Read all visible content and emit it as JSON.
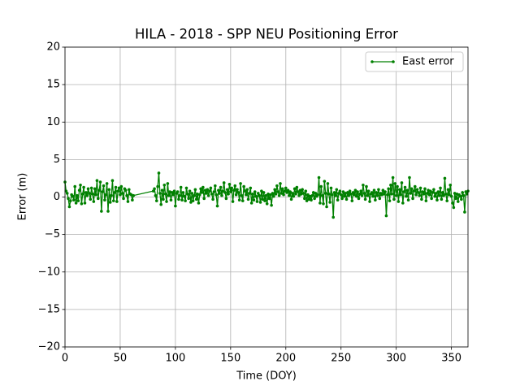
{
  "chart_data": {
    "type": "line",
    "title": "HILA - 2018 - SPP NEU Positioning Error",
    "xlabel": "Time (DOY)",
    "ylabel": "Error (m)",
    "xlim": [
      0,
      365
    ],
    "ylim": [
      -20,
      20
    ],
    "xticks": [
      0,
      50,
      100,
      150,
      200,
      250,
      300,
      350
    ],
    "yticks": [
      {
        "value": -20,
        "label": "−20"
      },
      {
        "value": -15,
        "label": "−15"
      },
      {
        "value": -10,
        "label": "−10"
      },
      {
        "value": -5,
        "label": "−5"
      },
      0,
      5,
      10,
      15,
      20
    ],
    "grid": true,
    "legend": "upper right",
    "x": [
      0,
      1,
      2,
      3,
      4,
      5,
      6,
      7,
      8,
      9,
      10,
      11,
      12,
      13,
      14,
      15,
      16,
      17,
      18,
      19,
      20,
      21,
      22,
      23,
      24,
      25,
      26,
      27,
      28,
      29,
      30,
      31,
      32,
      33,
      34,
      35,
      36,
      37,
      38,
      39,
      40,
      41,
      42,
      43,
      44,
      45,
      46,
      47,
      48,
      49,
      50,
      51,
      52,
      53,
      54,
      55,
      56,
      57,
      58,
      59,
      60,
      61,
      62,
      80,
      81,
      82,
      83,
      84,
      85,
      86,
      87,
      88,
      89,
      90,
      91,
      92,
      93,
      94,
      95,
      96,
      97,
      98,
      99,
      100,
      101,
      102,
      103,
      104,
      105,
      106,
      107,
      108,
      109,
      110,
      111,
      112,
      113,
      114,
      115,
      116,
      117,
      118,
      119,
      120,
      121,
      122,
      123,
      124,
      125,
      126,
      127,
      128,
      129,
      130,
      131,
      132,
      133,
      134,
      135,
      136,
      137,
      138,
      139,
      140,
      141,
      142,
      143,
      144,
      145,
      146,
      147,
      148,
      149,
      150,
      151,
      152,
      153,
      154,
      155,
      156,
      157,
      158,
      159,
      160,
      161,
      162,
      163,
      164,
      165,
      166,
      167,
      168,
      169,
      170,
      171,
      172,
      173,
      174,
      175,
      176,
      177,
      178,
      179,
      180,
      181,
      182,
      183,
      184,
      185,
      186,
      187,
      188,
      189,
      190,
      191,
      192,
      193,
      194,
      195,
      196,
      197,
      198,
      199,
      200,
      201,
      202,
      203,
      204,
      205,
      206,
      207,
      208,
      209,
      210,
      211,
      212,
      213,
      214,
      215,
      216,
      217,
      218,
      219,
      220,
      221,
      222,
      223,
      224,
      225,
      226,
      227,
      228,
      229,
      230,
      231,
      232,
      233,
      234,
      235,
      236,
      237,
      238,
      239,
      240,
      241,
      242,
      243,
      244,
      245,
      246,
      247,
      248,
      249,
      250,
      251,
      252,
      253,
      254,
      255,
      256,
      257,
      258,
      259,
      260,
      261,
      262,
      263,
      264,
      265,
      266,
      267,
      268,
      269,
      270,
      271,
      272,
      273,
      274,
      275,
      276,
      277,
      278,
      279,
      280,
      281,
      282,
      283,
      284,
      285,
      286,
      287,
      288,
      289,
      290,
      291,
      292,
      293,
      294,
      295,
      296,
      297,
      298,
      299,
      300,
      301,
      302,
      303,
      304,
      305,
      306,
      307,
      308,
      309,
      310,
      311,
      312,
      313,
      314,
      315,
      316,
      317,
      318,
      319,
      320,
      321,
      322,
      323,
      324,
      325,
      326,
      327,
      328,
      329,
      330,
      331,
      332,
      333,
      334,
      335,
      336,
      337,
      338,
      339,
      340,
      341,
      342,
      343,
      344,
      345,
      346,
      347,
      348,
      349,
      350,
      351,
      352,
      353,
      354,
      355,
      356,
      357,
      358,
      359,
      360,
      361,
      362,
      363,
      364,
      365
    ],
    "series": [
      {
        "name": "East error",
        "color": "#008000",
        "values": [
          2.0,
          0.8,
          0.5,
          -0.2,
          -1.3,
          -0.5,
          0.3,
          0.1,
          -0.4,
          1.4,
          -0.8,
          0.2,
          -0.5,
          0.9,
          1.6,
          -0.9,
          0.4,
          1.3,
          -0.8,
          0.6,
          0.2,
          1.1,
          0.5,
          -0.3,
          1.2,
          0.4,
          -0.6,
          1.1,
          0.3,
          2.2,
          -0.2,
          0.9,
          2.0,
          -1.9,
          0.7,
          1.5,
          -0.4,
          0.3,
          1.8,
          -1.9,
          1.0,
          -0.7,
          0.2,
          2.2,
          -0.5,
          0.6,
          1.3,
          -0.6,
          0.8,
          1.2,
          0.3,
          1.4,
          0.5,
          -0.2,
          1.1,
          0.9,
          0.2,
          -0.6,
          1.0,
          0.4,
          0.3,
          -0.4,
          0.2,
          0.8,
          1.1,
          0.2,
          -0.5,
          1.4,
          3.2,
          0.5,
          -1.0,
          0.9,
          -0.3,
          1.6,
          0.4,
          -0.6,
          1.8,
          0.2,
          0.7,
          -0.4,
          0.6,
          0.3,
          0.8,
          -1.2,
          0.5,
          0.7,
          -0.3,
          0.2,
          1.3,
          -0.4,
          0.6,
          0.1,
          -0.5,
          1.2,
          0.4,
          -0.2,
          0.8,
          -0.7,
          0.5,
          -0.5,
          0.2,
          1.0,
          -0.3,
          0.4,
          -0.8,
          0.3,
          1.1,
          0.6,
          1.3,
          -0.2,
          0.9,
          0.5,
          1.0,
          0.2,
          0.8,
          1.2,
          0.4,
          -0.3,
          0.7,
          1.5,
          0.3,
          -1.2,
          0.9,
          0.5,
          1.3,
          0.2,
          0.8,
          1.9,
          0.6,
          -0.2,
          1.0,
          0.4,
          1.7,
          0.7,
          1.2,
          -0.6,
          0.9,
          1.5,
          0.3,
          1.0,
          0.6,
          -0.4,
          1.8,
          0.2,
          -0.5,
          1.4,
          0.8,
          0.3,
          1.0,
          -0.3,
          0.5,
          1.2,
          -0.8,
          0.4,
          -0.4,
          0.7,
          0.1,
          -0.6,
          0.5,
          0.2,
          -0.7,
          0.8,
          -0.3,
          0.6,
          -0.5,
          0.2,
          -0.9,
          0.4,
          -0.2,
          0.3,
          -1.1,
          0.5,
          0.1,
          1.0,
          0.4,
          1.5,
          0.7,
          0.2,
          1.8,
          0.5,
          1.1,
          0.3,
          0.8,
          1.2,
          0.6,
          0.9,
          0.2,
          0.7,
          -0.3,
          0.5,
          0.1,
          1.1,
          0.4,
          1.3,
          0.7,
          0.2,
          0.9,
          0.4,
          1.0,
          0.5,
          -0.2,
          0.8,
          -0.5,
          0.3,
          -0.3,
          0.1,
          -0.4,
          0.2,
          0.6,
          -0.2,
          0.5,
          0.1,
          0.3,
          2.6,
          -0.8,
          1.4,
          0.2,
          -0.9,
          2.1,
          0.5,
          -1.3,
          1.8,
          0.4,
          -0.7,
          1.2,
          0.3,
          -2.7,
          0.6,
          0.2,
          1.0,
          -0.4,
          0.5,
          0.8,
          0.3,
          -0.2,
          0.7,
          0.1,
          0.5,
          -0.3,
          0.6,
          0.2,
          0.8,
          0.4,
          -0.5,
          0.6,
          0.3,
          0.9,
          0.1,
          0.7,
          -0.2,
          0.4,
          0.8,
          0.2,
          1.6,
          0.5,
          -0.3,
          1.4,
          0.2,
          0.8,
          -0.6,
          0.4,
          0.6,
          0.1,
          0.9,
          -0.4,
          0.6,
          0.2,
          1.0,
          -0.2,
          0.5,
          0.3,
          0.9,
          0.4,
          0.7,
          -2.5,
          0.3,
          1.1,
          -0.5,
          1.6,
          0.4,
          2.6,
          -0.3,
          1.8,
          0.2,
          1.4,
          -0.6,
          1.0,
          0.3,
          1.9,
          -0.8,
          0.7,
          1.3,
          0.1,
          0.9,
          -0.4,
          2.6,
          0.5,
          1.1,
          -0.2,
          0.8,
          1.4,
          0.3,
          1.0,
          0.6,
          0.2,
          1.2,
          -0.3,
          0.7,
          0.4,
          1.1,
          -0.5,
          0.5,
          0.9,
          0.3,
          0.8,
          -0.2,
          0.6,
          1.0,
          0.1,
          0.5,
          -0.4,
          0.7,
          0.2,
          1.2,
          -0.3,
          0.6,
          0.2,
          2.5,
          0.4,
          -0.5,
          1.0,
          0.3,
          1.6,
          0.1,
          -0.8,
          -1.4,
          0.5,
          -0.2,
          0.4,
          -0.6,
          0.3,
          0.1,
          -0.3,
          0.6,
          0.2,
          -2.0,
          0.7,
          0.4,
          0.8
        ]
      }
    ]
  }
}
